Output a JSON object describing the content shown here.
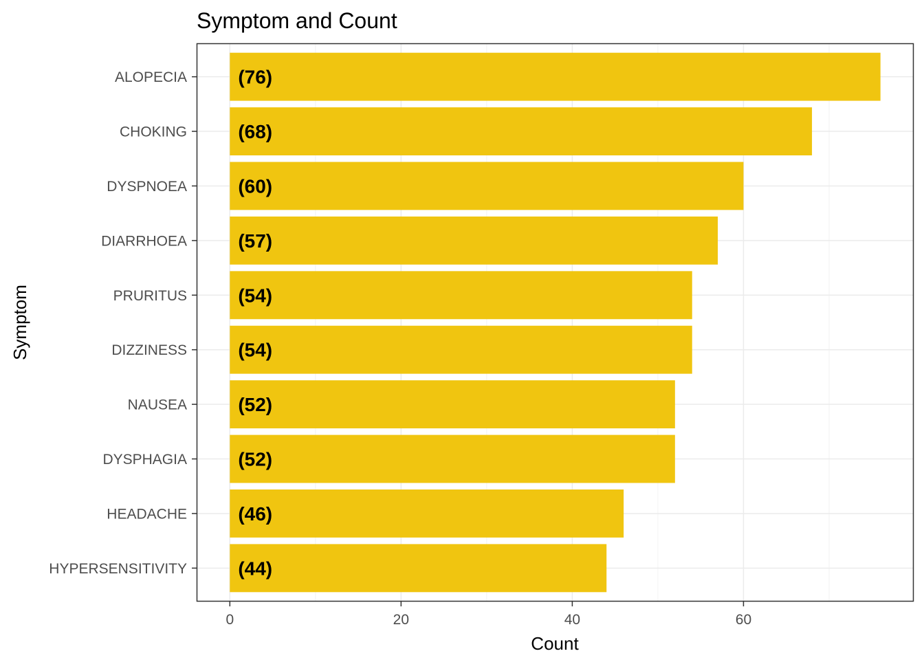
{
  "chart_data": {
    "type": "bar",
    "orientation": "horizontal",
    "title": "Symptom and Count",
    "xlabel": "Count",
    "ylabel": "Symptom",
    "categories": [
      "ALOPECIA",
      "CHOKING",
      "DYSPNOEA",
      "DIARRHOEA",
      "PRURITUS",
      "DIZZINESS",
      "NAUSEA",
      "DYSPHAGIA",
      "HEADACHE",
      "HYPERSENSITIVITY"
    ],
    "values": [
      76,
      68,
      60,
      57,
      54,
      54,
      52,
      52,
      46,
      44
    ],
    "data_labels": [
      "(76)",
      "(68)",
      "(60)",
      "(57)",
      "(54)",
      "(54)",
      "(52)",
      "(52)",
      "(46)",
      "(44)"
    ],
    "xlim": [
      -3.8,
      79.8
    ],
    "x_ticks": [
      0,
      20,
      40,
      60
    ],
    "x_tick_labels": [
      "0",
      "20",
      "40",
      "60"
    ],
    "grid": true,
    "bar_color": "#F0C510",
    "legend": "none"
  }
}
